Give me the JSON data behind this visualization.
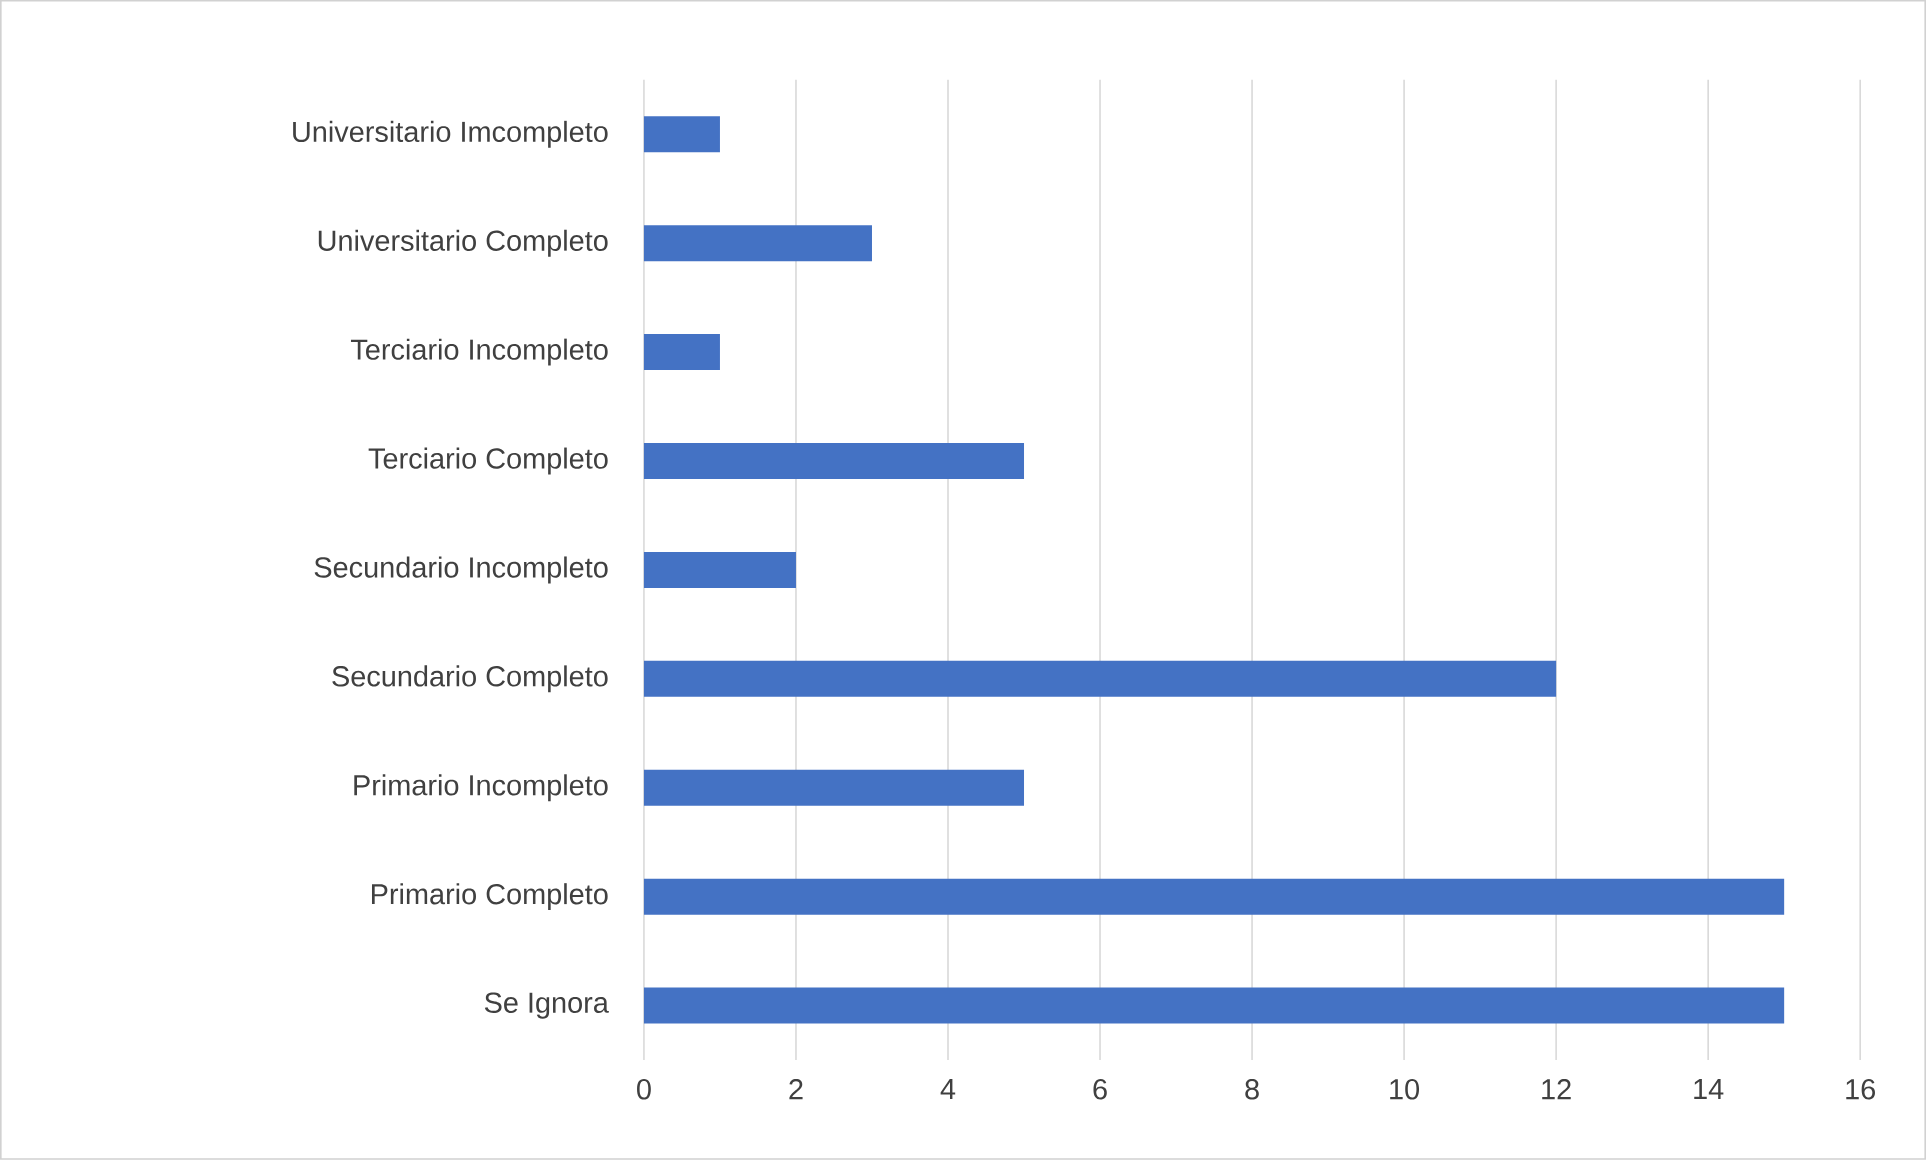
{
  "chart_data": {
    "type": "bar",
    "orientation": "horizontal",
    "categories": [
      "Universitario Imcompleto",
      "Universitario Completo",
      "Terciario Incompleto",
      "Terciario Completo",
      "Secundario Incompleto",
      "Secundario Completo",
      "Primario Incompleto",
      "Primario Completo",
      "Se Ignora"
    ],
    "values": [
      1,
      3,
      1,
      5,
      2,
      12,
      5,
      15,
      15
    ],
    "color": "#4472c4",
    "xlim": [
      0,
      16
    ],
    "xticks": [
      0,
      2,
      4,
      6,
      8,
      10,
      12,
      14,
      16
    ],
    "grid": "x"
  }
}
